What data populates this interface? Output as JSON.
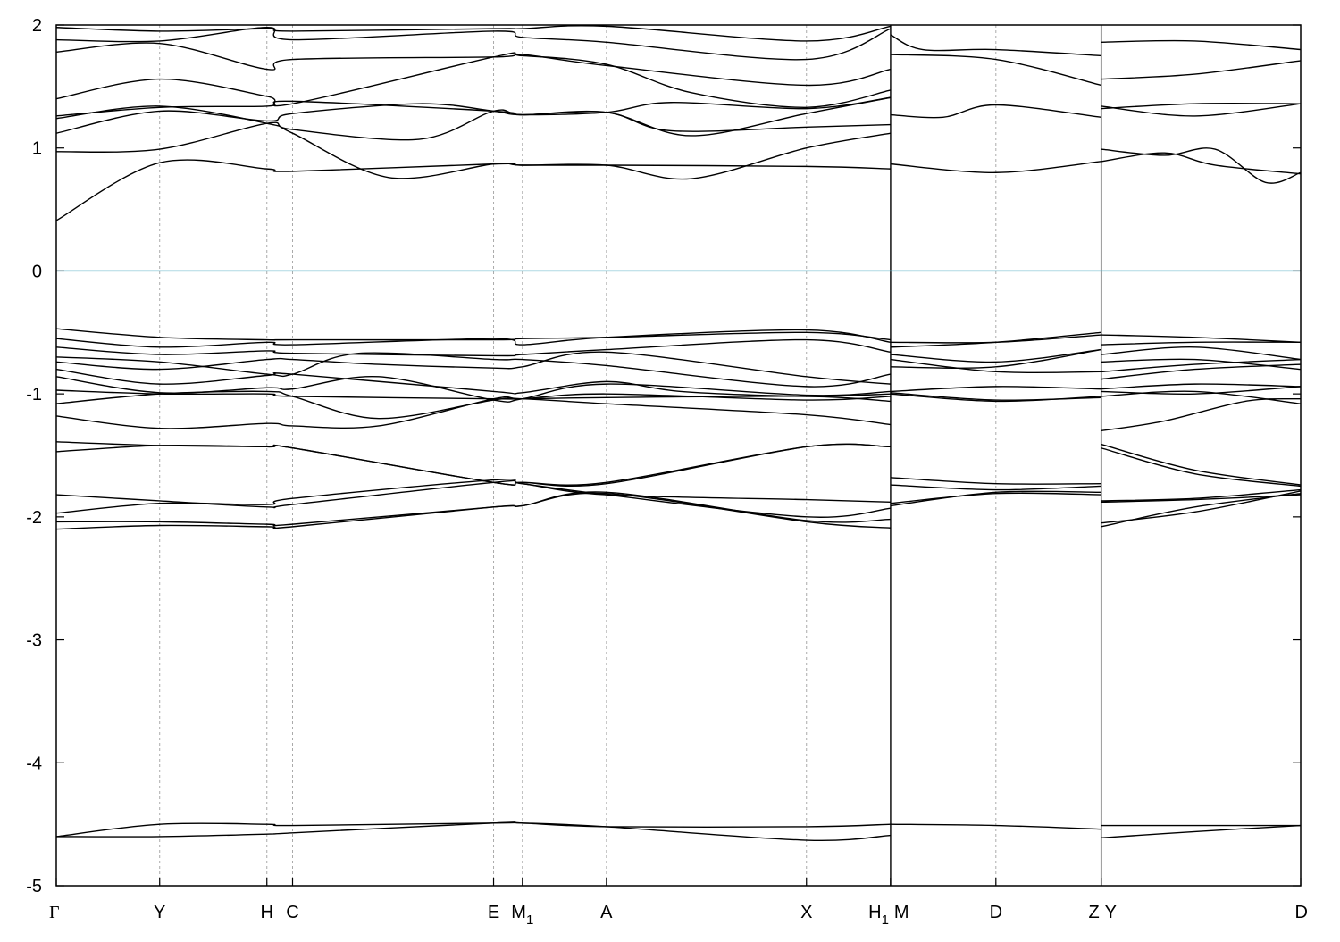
{
  "chart_data": {
    "type": "line",
    "title": "",
    "xlabel": "",
    "ylabel": "",
    "ylim": [
      -5,
      2
    ],
    "y_ticks": [
      -5,
      -4,
      -3,
      -2,
      -1,
      0,
      1,
      2
    ],
    "grid": "vertical dashed lines at high-symmetry points",
    "reference_line": {
      "y": 0,
      "color": "#5fb3c9"
    },
    "band_color": "#000000",
    "high_symmetry_points": [
      {
        "label": "Γ",
        "x": 0.0
      },
      {
        "label": "Y",
        "x": 1.026
      },
      {
        "label": "H",
        "x": 2.09
      },
      {
        "label": "C",
        "x": 2.345
      },
      {
        "label": "E",
        "x": 4.34
      },
      {
        "label": "M",
        "sub": "1",
        "x": 4.626
      },
      {
        "label": "A",
        "x": 5.46
      },
      {
        "label": "X",
        "x": 7.445
      },
      {
        "label": "H",
        "sub": "1",
        "x": 8.28
      },
      {
        "label": "M",
        "x": 8.28
      },
      {
        "label": "D",
        "x": 9.325
      },
      {
        "label": "Z",
        "x": 10.37
      },
      {
        "label": "Y",
        "x": 10.37
      },
      {
        "label": "D",
        "x": 12.35
      }
    ],
    "series": [
      {
        "x": [
          0,
          1.026,
          2.09,
          2.345,
          4.34,
          4.626,
          5.46,
          7.445,
          8.28
        ],
        "y": [
          0.41,
          0.88,
          0.83,
          0.81,
          0.87,
          0.86,
          0.86,
          0.85,
          0.83
        ]
      },
      {
        "x": [
          0,
          1.026,
          2.09,
          2.345,
          3.6,
          4.34,
          4.626,
          5.46,
          6.1,
          7.445,
          8.28
        ],
        "y": [
          0.97,
          0.99,
          1.2,
          1.15,
          1.07,
          1.3,
          1.27,
          1.29,
          1.37,
          1.32,
          1.41
        ]
      },
      {
        "x": [
          0,
          1.026,
          2.09,
          2.345,
          3.6,
          4.34,
          4.626,
          5.46,
          6.1,
          7.445,
          8.28
        ],
        "y": [
          1.12,
          1.3,
          1.22,
          1.28,
          1.36,
          1.3,
          1.27,
          1.29,
          1.14,
          1.17,
          1.19
        ]
      },
      {
        "x": [
          0,
          1.026,
          2.09,
          2.345,
          3.3,
          4.34,
          4.626,
          5.46,
          6.3,
          7.445,
          8.28
        ],
        "y": [
          1.24,
          1.34,
          1.2,
          1.12,
          0.76,
          0.87,
          0.86,
          0.86,
          0.75,
          1.0,
          1.12
        ]
      },
      {
        "x": [
          0,
          1.026,
          2.09,
          2.345,
          4.34,
          4.626,
          5.46,
          6.3,
          7.445,
          8.28
        ],
        "y": [
          1.26,
          1.33,
          1.34,
          1.38,
          1.3,
          1.27,
          1.29,
          1.1,
          1.28,
          1.41
        ]
      },
      {
        "x": [
          0,
          1.026,
          2.09,
          2.345,
          4.34,
          4.626,
          5.46,
          6.3,
          7.445,
          8.28
        ],
        "y": [
          1.4,
          1.56,
          1.42,
          1.36,
          1.74,
          1.75,
          1.68,
          1.45,
          1.33,
          1.47
        ]
      },
      {
        "x": [
          0,
          1.026,
          2.09,
          2.345,
          4.34,
          4.626,
          5.46,
          7.445,
          8.28
        ],
        "y": [
          1.78,
          1.85,
          1.64,
          1.72,
          1.74,
          1.76,
          1.67,
          1.51,
          1.64
        ]
      },
      {
        "x": [
          0,
          1.026,
          2.09,
          2.345,
          4.34,
          4.626,
          5.46,
          7.445,
          8.28
        ],
        "y": [
          1.88,
          1.87,
          1.98,
          1.88,
          1.95,
          1.9,
          1.86,
          1.72,
          1.97
        ]
      },
      {
        "x": [
          0,
          1.026,
          2.09,
          2.345,
          4.34,
          4.626,
          5.46,
          7.445,
          8.28
        ],
        "y": [
          1.98,
          1.95,
          1.97,
          1.95,
          1.97,
          1.97,
          1.99,
          1.87,
          1.99
        ]
      },
      {
        "x": [
          8.28,
          9.325,
          10.37
        ],
        "y": [
          0.87,
          0.8,
          0.89
        ]
      },
      {
        "x": [
          8.28,
          8.8,
          9.325,
          10.37
        ],
        "y": [
          1.27,
          1.25,
          1.35,
          1.25
        ]
      },
      {
        "x": [
          8.28,
          9.325,
          10.37
        ],
        "y": [
          1.76,
          1.72,
          1.51
        ]
      },
      {
        "x": [
          8.28,
          8.6,
          9.325,
          10.37
        ],
        "y": [
          1.92,
          1.8,
          1.8,
          1.75
        ]
      },
      {
        "x": [
          10.37,
          11.0,
          11.5,
          12.35
        ],
        "y": [
          0.89,
          0.96,
          0.86,
          0.79
        ]
      },
      {
        "x": [
          10.37,
          11.0,
          11.5,
          12.0,
          12.35
        ],
        "y": [
          0.99,
          0.94,
          0.99,
          0.72,
          0.8
        ]
      },
      {
        "x": [
          10.37,
          11.3,
          12.35
        ],
        "y": [
          1.34,
          1.26,
          1.36
        ]
      },
      {
        "x": [
          10.37,
          11.3,
          12.35
        ],
        "y": [
          1.32,
          1.36,
          1.36
        ]
      },
      {
        "x": [
          10.37,
          11.3,
          12.35
        ],
        "y": [
          1.56,
          1.6,
          1.71
        ]
      },
      {
        "x": [
          10.37,
          11.3,
          12.35
        ],
        "y": [
          1.86,
          1.87,
          1.8
        ]
      },
      {
        "x": [
          0,
          1.026,
          2.09,
          2.345,
          4.34,
          4.626,
          5.46,
          7.445,
          8.28
        ],
        "y": [
          -0.47,
          -0.54,
          -0.56,
          -0.56,
          -0.56,
          -0.55,
          -0.54,
          -0.5,
          -0.56
        ]
      },
      {
        "x": [
          0,
          1.026,
          2.09,
          2.345,
          4.34,
          4.626,
          5.46,
          7.445,
          8.28
        ],
        "y": [
          -0.55,
          -0.62,
          -0.58,
          -0.6,
          -0.55,
          -0.6,
          -0.54,
          -0.48,
          -0.58
        ]
      },
      {
        "x": [
          0,
          1.026,
          2.09,
          2.345,
          4.34,
          4.626,
          5.46,
          7.445,
          8.28
        ],
        "y": [
          -0.62,
          -0.68,
          -0.65,
          -0.67,
          -0.69,
          -0.68,
          -0.64,
          -0.56,
          -0.66
        ]
      },
      {
        "x": [
          0,
          1.026,
          2.09,
          2.345,
          3.0,
          4.34,
          4.626,
          5.46,
          7.445,
          8.28
        ],
        "y": [
          -0.7,
          -0.74,
          -0.84,
          -0.84,
          -0.67,
          -0.72,
          -0.72,
          -0.77,
          -0.94,
          -0.84
        ]
      },
      {
        "x": [
          0,
          1.026,
          2.09,
          2.345,
          3.2,
          4.34,
          4.626,
          5.46,
          7.445,
          8.28
        ],
        "y": [
          -0.74,
          -0.8,
          -0.72,
          -0.72,
          -0.76,
          -0.79,
          -0.78,
          -0.66,
          -0.86,
          -0.92
        ]
      },
      {
        "x": [
          0,
          1.026,
          2.09,
          2.345,
          4.34,
          4.626,
          5.46,
          6.2,
          7.445,
          8.28
        ],
        "y": [
          -0.8,
          -0.92,
          -0.85,
          -0.84,
          -0.98,
          -0.99,
          -0.9,
          -0.98,
          -1.02,
          -1.0
        ]
      },
      {
        "x": [
          0,
          1.026,
          2.09,
          2.345,
          3.2,
          4.34,
          4.626,
          5.46,
          7.445,
          8.28
        ],
        "y": [
          -0.86,
          -0.99,
          -0.95,
          -0.96,
          -0.86,
          -1.05,
          -1.04,
          -0.92,
          -1.01,
          -0.98
        ]
      },
      {
        "x": [
          0,
          1.026,
          2.09,
          2.345,
          4.34,
          4.626,
          5.46,
          7.445,
          8.28
        ],
        "y": [
          -0.97,
          -1.0,
          -1.0,
          -1.02,
          -1.04,
          -1.04,
          -1.03,
          -1.02,
          -1.06
        ]
      },
      {
        "x": [
          0,
          1.026,
          2.09,
          2.345,
          3.2,
          4.34,
          4.626,
          5.46,
          7.445,
          8.28
        ],
        "y": [
          -1.08,
          -1.0,
          -0.98,
          -1.02,
          -1.2,
          -1.05,
          -1.04,
          -1.08,
          -1.17,
          -1.25
        ]
      },
      {
        "x": [
          0,
          1.026,
          2.09,
          2.345,
          3.2,
          4.34,
          4.626,
          5.46,
          7.445,
          8.28
        ],
        "y": [
          -1.18,
          -1.28,
          -1.24,
          -1.26,
          -1.26,
          -1.04,
          -1.04,
          -1.0,
          -1.05,
          -1.02
        ]
      },
      {
        "x": [
          8.28,
          9.325,
          10.37
        ],
        "y": [
          -0.58,
          -0.58,
          -0.52
        ]
      },
      {
        "x": [
          8.28,
          9.325,
          10.37
        ],
        "y": [
          -0.62,
          -0.58,
          -0.5
        ]
      },
      {
        "x": [
          8.28,
          9.325,
          10.37
        ],
        "y": [
          -0.68,
          -0.74,
          -0.64
        ]
      },
      {
        "x": [
          8.28,
          9.325,
          10.37
        ],
        "y": [
          -0.72,
          -0.82,
          -0.82
        ]
      },
      {
        "x": [
          8.28,
          9.325,
          10.37
        ],
        "y": [
          -0.78,
          -0.78,
          -0.64
        ]
      },
      {
        "x": [
          8.28,
          9.325,
          10.37
        ],
        "y": [
          -0.98,
          -0.94,
          -0.96
        ]
      },
      {
        "x": [
          8.28,
          9.325,
          10.37
        ],
        "y": [
          -1.0,
          -1.06,
          -1.02
        ]
      },
      {
        "x": [
          8.28,
          9.325,
          10.37
        ],
        "y": [
          -0.99,
          -1.05,
          -1.03
        ]
      },
      {
        "x": [
          10.37,
          11.3,
          12.35
        ],
        "y": [
          -0.52,
          -0.54,
          -0.58
        ]
      },
      {
        "x": [
          10.37,
          11.3,
          12.35
        ],
        "y": [
          -0.6,
          -0.58,
          -0.58
        ]
      },
      {
        "x": [
          10.37,
          11.3,
          12.35
        ],
        "y": [
          -0.68,
          -0.62,
          -0.72
        ]
      },
      {
        "x": [
          10.37,
          11.3,
          12.35
        ],
        "y": [
          -0.74,
          -0.72,
          -0.8
        ]
      },
      {
        "x": [
          10.37,
          11.3,
          12.35
        ],
        "y": [
          -0.82,
          -0.76,
          -0.72
        ]
      },
      {
        "x": [
          10.37,
          11.3,
          12.35
        ],
        "y": [
          -0.88,
          -0.8,
          -0.76
        ]
      },
      {
        "x": [
          10.37,
          11.3,
          12.35
        ],
        "y": [
          -0.96,
          -0.92,
          -0.94
        ]
      },
      {
        "x": [
          10.37,
          11.3,
          12.35
        ],
        "y": [
          -0.98,
          -1.0,
          -0.94
        ]
      },
      {
        "x": [
          10.37,
          11.3,
          12.35
        ],
        "y": [
          -1.02,
          -0.98,
          -1.08
        ]
      },
      {
        "x": [
          10.37,
          11.0,
          11.8,
          12.35
        ],
        "y": [
          -1.3,
          -1.22,
          -1.06,
          -1.04
        ]
      },
      {
        "x": [
          0,
          1.026,
          2.09,
          2.345,
          4.34,
          4.626,
          5.46,
          7.445,
          8.28
        ],
        "y": [
          -1.39,
          -1.42,
          -1.43,
          -1.44,
          -1.72,
          -1.72,
          -1.72,
          -1.43,
          -1.43
        ]
      },
      {
        "x": [
          0,
          1.026,
          2.09,
          2.345,
          4.34,
          4.626,
          5.46,
          7.445,
          8.28
        ],
        "y": [
          -1.47,
          -1.42,
          -1.43,
          -1.44,
          -1.72,
          -1.72,
          -1.73,
          -1.43,
          -1.43
        ]
      },
      {
        "x": [
          0,
          1.026,
          2.09,
          2.345,
          4.34,
          4.626,
          5.46,
          7.445,
          8.28
        ],
        "y": [
          -1.82,
          -1.87,
          -1.92,
          -1.9,
          -1.72,
          -1.73,
          -1.82,
          -1.86,
          -1.88
        ]
      },
      {
        "x": [
          0,
          1.026,
          2.09,
          2.345,
          4.34,
          4.626,
          5.46,
          7.445,
          8.28
        ],
        "y": [
          -1.97,
          -1.89,
          -1.9,
          -1.85,
          -1.7,
          -1.73,
          -1.82,
          -2.0,
          -1.93
        ]
      },
      {
        "x": [
          0,
          1.026,
          2.09,
          2.345,
          4.34,
          4.626,
          5.46,
          7.445,
          8.28
        ],
        "y": [
          -2.04,
          -2.04,
          -2.06,
          -2.06,
          -1.92,
          -1.91,
          -1.8,
          -2.03,
          -2.02
        ]
      },
      {
        "x": [
          0,
          1.026,
          2.09,
          2.345,
          4.34,
          4.626,
          5.46,
          7.445,
          8.28
        ],
        "y": [
          -2.1,
          -2.07,
          -2.08,
          -2.08,
          -1.92,
          -1.91,
          -1.81,
          -2.04,
          -2.09
        ]
      },
      {
        "x": [
          8.28,
          9.325,
          10.37
        ],
        "y": [
          -1.68,
          -1.73,
          -1.73
        ]
      },
      {
        "x": [
          8.28,
          9.325,
          10.37
        ],
        "y": [
          -1.74,
          -1.78,
          -1.75
        ]
      },
      {
        "x": [
          8.28,
          9.325,
          10.37
        ],
        "y": [
          -1.91,
          -1.8,
          -1.8
        ]
      },
      {
        "x": [
          8.28,
          9.325,
          10.37
        ],
        "y": [
          -1.89,
          -1.81,
          -1.82
        ]
      },
      {
        "x": [
          10.37,
          11.3,
          12.35
        ],
        "y": [
          -1.41,
          -1.62,
          -1.74
        ]
      },
      {
        "x": [
          10.37,
          11.3,
          12.35
        ],
        "y": [
          -1.44,
          -1.65,
          -1.75
        ]
      },
      {
        "x": [
          10.37,
          11.3,
          12.35
        ],
        "y": [
          -1.87,
          -1.85,
          -1.78
        ]
      },
      {
        "x": [
          10.37,
          11.3,
          12.35
        ],
        "y": [
          -1.88,
          -1.86,
          -1.82
        ]
      },
      {
        "x": [
          10.37,
          11.3,
          12.35
        ],
        "y": [
          -2.05,
          -1.96,
          -1.79
        ]
      },
      {
        "x": [
          10.37,
          11.3,
          12.35
        ],
        "y": [
          -2.08,
          -1.92,
          -1.81
        ]
      },
      {
        "x": [
          0,
          1.026,
          2.09,
          2.345,
          4.34,
          4.626,
          5.46,
          7.445,
          8.28
        ],
        "y": [
          -4.6,
          -4.5,
          -4.5,
          -4.51,
          -4.49,
          -4.49,
          -4.52,
          -4.52,
          -4.5
        ]
      },
      {
        "x": [
          0,
          1.026,
          2.09,
          2.345,
          4.34,
          4.626,
          5.46,
          7.445,
          8.28
        ],
        "y": [
          -4.6,
          -4.6,
          -4.58,
          -4.57,
          -4.49,
          -4.49,
          -4.52,
          -4.63,
          -4.59
        ]
      },
      {
        "x": [
          8.28,
          9.325,
          10.37
        ],
        "y": [
          -4.5,
          -4.51,
          -4.54
        ]
      },
      {
        "x": [
          10.37,
          11.3,
          12.35
        ],
        "y": [
          -4.51,
          -4.51,
          -4.51
        ]
      },
      {
        "x": [
          10.37,
          11.3,
          12.35
        ],
        "y": [
          -4.61,
          -4.56,
          -4.51
        ]
      }
    ]
  }
}
